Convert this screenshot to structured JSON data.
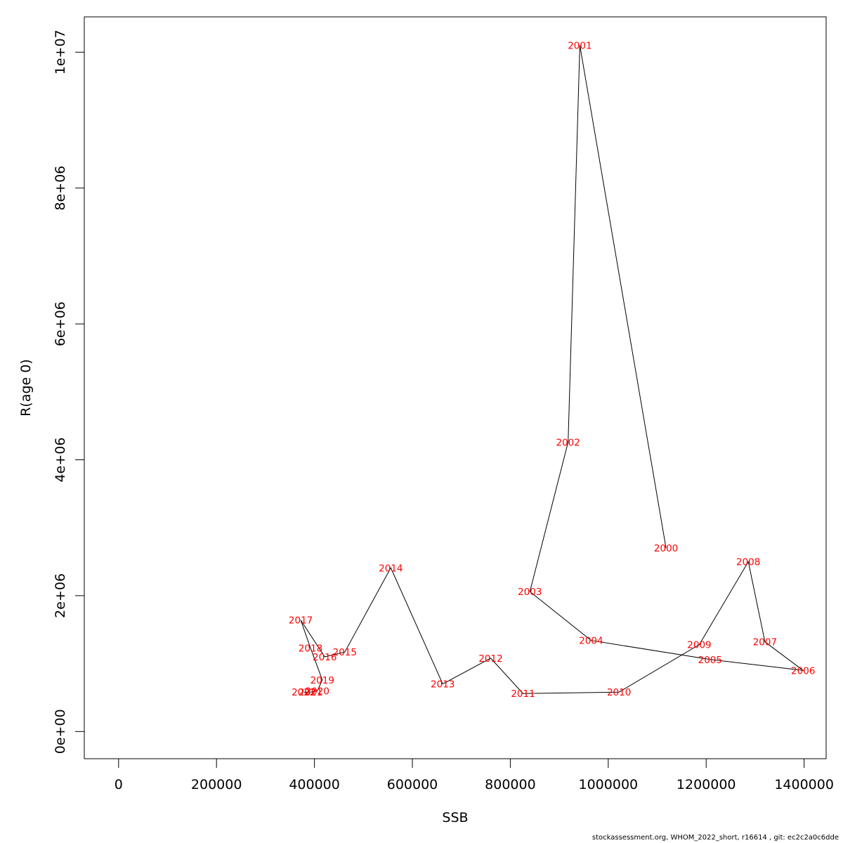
{
  "chart_data": {
    "type": "line",
    "xlabel": "SSB",
    "ylabel": "R(age 0)",
    "xlim": [
      -70000,
      1445000
    ],
    "ylim": [
      -400000,
      10520000
    ],
    "x_ticks": [
      {
        "value": 0,
        "label": "0"
      },
      {
        "value": 200000,
        "label": "200000"
      },
      {
        "value": 400000,
        "label": "400000"
      },
      {
        "value": 600000,
        "label": "600000"
      },
      {
        "value": 800000,
        "label": "800000"
      },
      {
        "value": 1000000,
        "label": "1000000"
      },
      {
        "value": 1200000,
        "label": "1200000"
      },
      {
        "value": 1400000,
        "label": "1400000"
      }
    ],
    "y_ticks": [
      {
        "value": 0,
        "label": "0e+00"
      },
      {
        "value": 2000000,
        "label": "2e+06"
      },
      {
        "value": 4000000,
        "label": "4e+06"
      },
      {
        "value": 6000000,
        "label": "6e+06"
      },
      {
        "value": 8000000,
        "label": "8e+06"
      },
      {
        "value": 10000000,
        "label": "1e+07"
      }
    ],
    "grid": false,
    "line_color": "#000000",
    "label_color": "#ff0000",
    "points": [
      {
        "year": "2000",
        "x": 1118000,
        "y": 2700000
      },
      {
        "year": "2001",
        "x": 942000,
        "y": 10100000
      },
      {
        "year": "2002",
        "x": 918000,
        "y": 4260000
      },
      {
        "year": "2003",
        "x": 840000,
        "y": 2060000
      },
      {
        "year": "2004",
        "x": 965000,
        "y": 1340000
      },
      {
        "year": "2005",
        "x": 1208000,
        "y": 1060000
      },
      {
        "year": "2006",
        "x": 1398000,
        "y": 900000
      },
      {
        "year": "2007",
        "x": 1320000,
        "y": 1320000
      },
      {
        "year": "2008",
        "x": 1286000,
        "y": 2500000
      },
      {
        "year": "2009",
        "x": 1186000,
        "y": 1280000
      },
      {
        "year": "2010",
        "x": 1022000,
        "y": 580000
      },
      {
        "year": "2011",
        "x": 826000,
        "y": 560000
      },
      {
        "year": "2012",
        "x": 760000,
        "y": 1080000
      },
      {
        "year": "2013",
        "x": 662000,
        "y": 700000
      },
      {
        "year": "2014",
        "x": 556000,
        "y": 2410000
      },
      {
        "year": "2015",
        "x": 462000,
        "y": 1170000
      },
      {
        "year": "2016",
        "x": 421000,
        "y": 1100000
      },
      {
        "year": "2017",
        "x": 372000,
        "y": 1640000
      },
      {
        "year": "2018",
        "x": 392000,
        "y": 1230000
      },
      {
        "year": "2019",
        "x": 416000,
        "y": 760000
      },
      {
        "year": "2020",
        "x": 406000,
        "y": 600000
      },
      {
        "year": "2021",
        "x": 392000,
        "y": 580000
      },
      {
        "year": "2022",
        "x": 378000,
        "y": 580000
      }
    ]
  },
  "footer": {
    "text": "stockassessment.org, WHOM_2022_short, r16614 , git: ec2c2a0c6dde"
  }
}
